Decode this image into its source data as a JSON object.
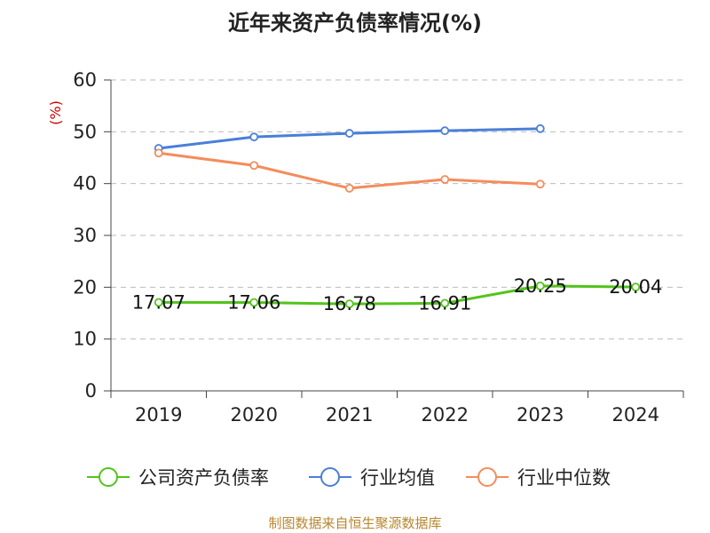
{
  "chart_data": {
    "type": "line",
    "title": "近年来资产负债率情况(%)",
    "ylabel": "(%)",
    "categories": [
      "2019",
      "2020",
      "2021",
      "2022",
      "2023",
      "2024"
    ],
    "ylim": [
      0,
      60
    ],
    "yticks": [
      0,
      10,
      20,
      30,
      40,
      50,
      60
    ],
    "grid": true,
    "legend_position": "bottom",
    "series": [
      {
        "name": "公司资产负债率",
        "color": "#52c41a",
        "values": [
          17.07,
          17.06,
          16.78,
          16.91,
          20.25,
          20.04
        ],
        "labels": [
          "17.07",
          "17.06",
          "16.78",
          "16.91",
          "20.25",
          "20.04"
        ]
      },
      {
        "name": "行业均值",
        "color": "#4a7fd9",
        "values": [
          46.8,
          49.0,
          49.7,
          50.2,
          50.6,
          null
        ]
      },
      {
        "name": "行业中位数",
        "color": "#f48c5c",
        "values": [
          45.9,
          43.5,
          39.1,
          40.8,
          39.9,
          null
        ]
      }
    ]
  },
  "source": "制图数据来自恒生聚源数据库"
}
